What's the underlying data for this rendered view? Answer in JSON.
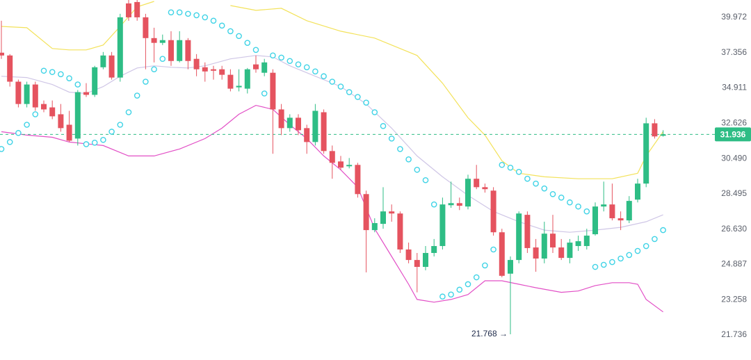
{
  "chart_data": {
    "type": "candlestick",
    "log_scale": true,
    "grid": false,
    "up_color": "#2ebd85",
    "down_color": "#e5535f",
    "ylim": [
      20.72,
      41.32
    ],
    "yticks": [
      39.972,
      37.356,
      34.911,
      32.626,
      {
        "value": 30.49,
        "label": "30.490"
      },
      28.495,
      {
        "value": 26.63,
        "label": "26.630"
      },
      24.887,
      23.258,
      21.736
    ],
    "open": [
      37.35,
      37.15,
      35.33,
      33.85,
      35.14,
      33.85,
      33.63,
      33.19,
      32.53,
      31.68,
      34.63,
      34.45,
      36.32,
      37.15,
      35.61,
      41.05,
      41.16,
      39.97,
      38.41,
      38.06,
      38.26,
      36.76,
      38.26,
      36.91,
      36.32,
      36.18,
      36.18,
      35.8,
      34.95,
      34.86,
      36.52,
      35.94,
      35.94,
      33.5,
      32.32,
      32.97,
      32.32,
      31.47,
      33.32,
      30.93,
      30.32,
      30.04,
      30.12,
      28.48,
      26.58,
      26.9,
      27.55,
      27.44,
      25.61,
      25.1,
      24.77,
      25.44,
      25.78,
      27.88,
      27.99,
      27.81,
      29.33,
      28.86,
      28.67,
      26.47,
      24.45,
      25.1,
      27.37,
      25.71,
      25.17,
      26.4,
      25.71,
      25.2,
      25.78,
      25.78,
      26.37,
      27.81,
      27.92,
      27.19,
      27.08,
      28.18,
      29.06,
      32.62,
      31.85
    ],
    "high": [
      39.71,
      37.25,
      35.47,
      35.33,
      35.33,
      34.08,
      34.08,
      33.85,
      33.41,
      34.77,
      35.23,
      36.42,
      37.4,
      37.4,
      40.24,
      41.32,
      41.32,
      40.24,
      39.18,
      38.67,
      38.92,
      38.92,
      38.41,
      37.25,
      36.66,
      36.42,
      36.42,
      36.18,
      36.18,
      36.27,
      37.15,
      36.91,
      36.18,
      33.85,
      33.19,
      33.19,
      32.53,
      33.85,
      33.5,
      31.26,
      30.64,
      30.52,
      30.24,
      28.67,
      27.19,
      28.86,
      27.92,
      27.55,
      25.95,
      25.44,
      25.78,
      26.13,
      28.29,
      29.17,
      28.29,
      29.56,
      30.12,
      29.06,
      28.86,
      26.65,
      25.27,
      27.55,
      27.55,
      26.13,
      27.01,
      27.37,
      26.13,
      26.13,
      26.3,
      26.65,
      28.03,
      29.17,
      29.06,
      27.55,
      28.37,
      29.33,
      32.97,
      32.88,
      32.19
    ],
    "low": [
      36.91,
      35.0,
      33.63,
      33.63,
      33.41,
      33.32,
      32.88,
      32.1,
      31.47,
      31.26,
      34.31,
      34.31,
      36.18,
      35.47,
      35.33,
      39.71,
      39.71,
      36.18,
      36.66,
      37.9,
      36.42,
      36.66,
      36.18,
      35.7,
      35.33,
      35.47,
      35.47,
      34.68,
      34.68,
      34.54,
      35.94,
      35.7,
      30.77,
      31.89,
      32.1,
      31.89,
      30.77,
      31.26,
      30.77,
      29.33,
      29.84,
      29.92,
      28.29,
      24.51,
      26.47,
      26.65,
      27.01,
      25.44,
      24.94,
      23.59,
      24.61,
      25.27,
      25.61,
      27.74,
      27.62,
      27.66,
      28.75,
      28.56,
      26.3,
      24.28,
      21.768,
      24.94,
      25.44,
      24.54,
      24.94,
      25.44,
      25.1,
      24.94,
      25.54,
      25.61,
      26.3,
      27.55,
      27.08,
      26.58,
      26.94,
      28.03,
      28.86,
      31.68,
      31.8
    ],
    "close": [
      37.15,
      35.33,
      33.85,
      35.14,
      33.63,
      33.5,
      33.06,
      32.32,
      31.55,
      34.63,
      34.45,
      36.32,
      37.15,
      35.61,
      39.97,
      39.97,
      39.97,
      38.41,
      38.06,
      38.26,
      36.76,
      38.26,
      36.76,
      36.18,
      36.03,
      36.08,
      35.8,
      34.86,
      35.05,
      36.18,
      36.18,
      36.66,
      33.5,
      32.32,
      32.97,
      32.19,
      31.47,
      33.41,
      30.93,
      30.24,
      29.96,
      30.12,
      28.48,
      26.58,
      26.94,
      27.55,
      27.44,
      25.61,
      25.1,
      24.77,
      25.44,
      25.78,
      27.92,
      27.99,
      27.85,
      29.33,
      28.86,
      28.75,
      26.47,
      24.35,
      25.1,
      27.44,
      25.68,
      25.17,
      26.4,
      25.71,
      25.2,
      25.95,
      26.02,
      26.3,
      27.81,
      27.92,
      27.19,
      27.08,
      28.11,
      29.06,
      32.62,
      31.81,
      31.936
    ],
    "series": [
      {
        "type": "line",
        "color": "#f3e25a",
        "x": [
          0,
          3,
          6,
          8,
          10,
          12,
          14,
          16,
          18,
          22,
          27,
          30,
          33,
          36,
          40,
          44,
          47,
          49,
          52,
          55,
          57,
          59,
          61,
          64,
          68,
          72,
          75,
          76,
          78
        ],
        "values": [
          39.28,
          39.18,
          37.65,
          37.55,
          37.55,
          37.9,
          39.28,
          40.78,
          41.21,
          null,
          40.88,
          40.51,
          40.67,
          39.71,
          38.92,
          38.41,
          37.65,
          37.15,
          35.23,
          32.97,
          31.89,
          30.36,
          29.64,
          29.44,
          29.33,
          29.33,
          29.64,
          30.64,
          32.1
        ]
      },
      {
        "type": "line",
        "color": "#cfc6e6",
        "x": [
          0,
          3,
          6,
          8,
          10,
          12,
          14,
          16,
          18,
          20,
          22,
          24,
          27,
          30,
          32,
          34,
          37,
          40,
          43,
          46,
          49,
          52,
          55,
          58,
          61,
          64,
          67,
          70,
          73,
          76,
          78
        ],
        "values": [
          35.7,
          35.61,
          35.14,
          34.63,
          34.54,
          35.0,
          35.7,
          36.27,
          36.42,
          36.32,
          36.27,
          36.42,
          36.91,
          37.15,
          37.05,
          36.42,
          35.7,
          35.0,
          33.85,
          32.32,
          30.64,
          29.44,
          28.41,
          27.55,
          27.01,
          26.58,
          26.47,
          26.58,
          26.72,
          27.01,
          27.37
        ]
      },
      {
        "type": "line",
        "color": "#e24fc6",
        "x": [
          0,
          3,
          6,
          8,
          12,
          15,
          18,
          21,
          24,
          26,
          28,
          30,
          32,
          34,
          36,
          38,
          40,
          42,
          44,
          46,
          48,
          49,
          51,
          53,
          55,
          57,
          59,
          61,
          63,
          66,
          68,
          70,
          72,
          74,
          75,
          76,
          78
        ],
        "values": [
          32.1,
          31.89,
          31.76,
          31.47,
          31.26,
          30.64,
          30.64,
          31.05,
          31.68,
          32.32,
          33.19,
          33.76,
          33.5,
          32.53,
          31.68,
          30.64,
          29.84,
          28.86,
          26.65,
          25.27,
          23.96,
          23.27,
          23.15,
          23.27,
          23.49,
          24.12,
          24.12,
          23.96,
          23.8,
          23.59,
          23.65,
          23.9,
          24.03,
          24.03,
          23.96,
          23.27,
          22.72
        ]
      },
      {
        "type": "scatter",
        "color": "#3fd3e6",
        "values": [
          31.05,
          31.47,
          32.02,
          32.53,
          33.19,
          36.08,
          35.99,
          35.84,
          35.56,
          35.14,
          31.34,
          31.43,
          31.6,
          32.1,
          32.53,
          33.32,
          34.4,
          35.33,
          36.18,
          36.91,
          40.35,
          40.35,
          40.24,
          40.13,
          39.97,
          39.71,
          39.34,
          38.92,
          38.56,
          38.06,
          37.55,
          34.54,
          37.15,
          37.0,
          36.76,
          36.52,
          36.32,
          36.03,
          35.7,
          35.33,
          35.0,
          34.63,
          34.31,
          33.94,
          33.32,
          32.45,
          31.68,
          31.05,
          30.44,
          29.84,
          29.25,
          27.92,
          23.4,
          23.49,
          23.71,
          23.96,
          24.28,
          24.84,
          25.61,
          30.12,
          29.96,
          29.72,
          29.33,
          29.06,
          28.79,
          28.48,
          28.29,
          28.03,
          27.81,
          27.55,
          24.77,
          24.87,
          25.0,
          25.17,
          25.34,
          25.54,
          25.78,
          26.13,
          26.58
        ]
      }
    ],
    "last_price": 31.936,
    "last_price_color": "#2ebd85",
    "min_label": {
      "value": 21.768,
      "label": "21.768 →"
    }
  }
}
